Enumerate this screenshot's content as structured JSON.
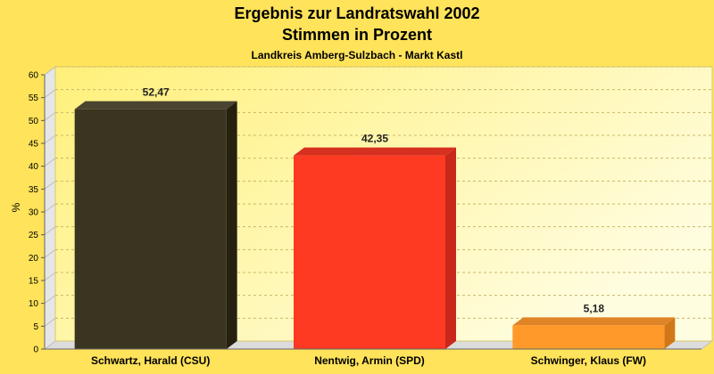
{
  "chart_data": {
    "type": "bar",
    "title": "Ergebnis zur Landratswahl 2002",
    "subtitle": "Stimmen in Prozent",
    "note": "Landkreis Amberg-Sulzbach - Markt Kastl",
    "ylabel": "%",
    "xlabel": "",
    "ylim": [
      0,
      60
    ],
    "yticks": [
      0,
      5,
      10,
      15,
      20,
      25,
      30,
      35,
      40,
      45,
      50,
      55,
      60
    ],
    "grid": true,
    "legend": "none",
    "categories": [
      "Schwartz, Harald (CSU)",
      "Nentwig, Armin (SPD)",
      "Schwinger, Klaus (FW)"
    ],
    "values": [
      52.47,
      42.35,
      5.18
    ],
    "value_labels": [
      "52,47",
      "42,35",
      "5,18"
    ],
    "colors": [
      "#3a3520",
      "#ff3a22",
      "#ff9a2a"
    ],
    "side_colors": [
      "#25200f",
      "#c8281a",
      "#d07818"
    ],
    "top_colors": [
      "#4a4430",
      "#d63020",
      "#e08428"
    ]
  }
}
